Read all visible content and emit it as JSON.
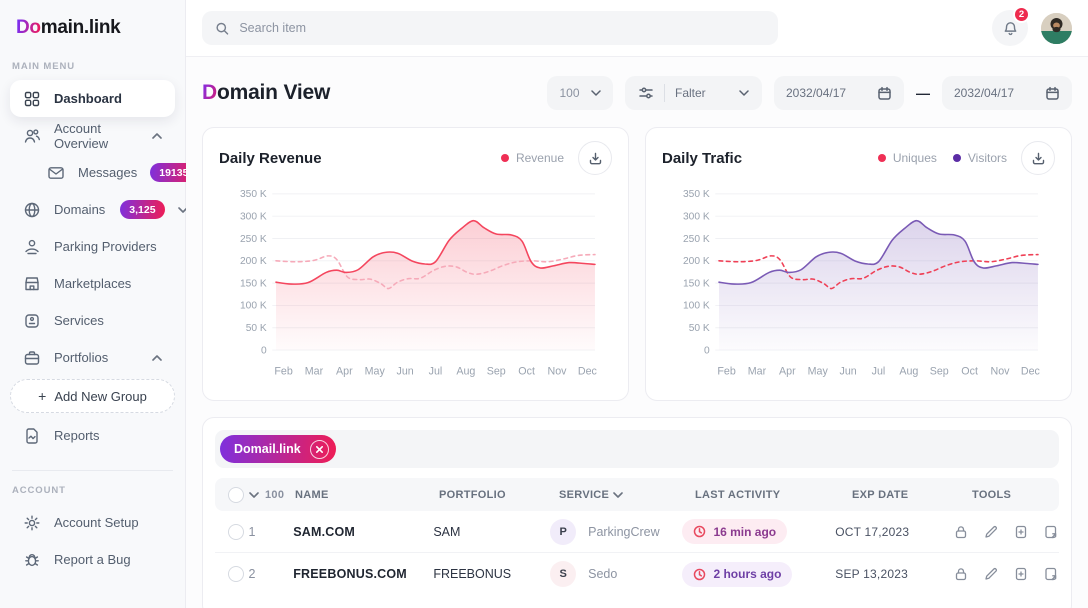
{
  "brand": {
    "logo_gradient": "Do",
    "logo_rest": "main.link"
  },
  "topbar": {
    "search_placeholder": "Search item",
    "notification_count": "2"
  },
  "sidebar": {
    "main_menu_label": "MAIN MENU",
    "account_label": "ACCOUNT",
    "dashboard": "Dashboard",
    "account_overview": "Account Overview",
    "messages": "Messages",
    "messages_badge": "19135",
    "domains": "Domains",
    "domains_badge": "3,125",
    "parking_providers": "Parking Providers",
    "marketplaces": "Marketplaces",
    "services": "Services",
    "portfolios": "Portfolios",
    "add_new_group": "Add New Group",
    "reports": "Reports",
    "account_setup": "Account Setup",
    "report_a_bug": "Report a Bug"
  },
  "page": {
    "title_initial": "D",
    "title_rest": "omain View"
  },
  "controls": {
    "page_size": "100",
    "filter_label": "Falter",
    "date_from": "2032/04/17",
    "date_separator": "—",
    "date_to": "2032/04/17"
  },
  "chart_data": [
    {
      "type": "area",
      "title": "Daily Revenue",
      "categories": [
        "Feb",
        "Mar",
        "Apr",
        "May",
        "Jun",
        "Jul",
        "Aug",
        "Sep",
        "Oct",
        "Nov",
        "Dec"
      ],
      "xlabel": "",
      "ylabel": "",
      "ylim": [
        0,
        350
      ],
      "grid": true,
      "legend_position": "top-right",
      "yticks": [
        {
          "v": 350,
          "label": "350 K"
        },
        {
          "v": 300,
          "label": "300 K"
        },
        {
          "v": 250,
          "label": "250 K"
        },
        {
          "v": 200,
          "label": "200 K"
        },
        {
          "v": 150,
          "label": "150 K"
        },
        {
          "v": 100,
          "label": "100 K"
        },
        {
          "v": 50,
          "label": "50 K"
        },
        {
          "v": 0,
          "label": "0"
        }
      ],
      "legend": [
        {
          "label": "Revenue",
          "color": "#ef2f55"
        }
      ],
      "series": [
        {
          "name": "Trend",
          "style": "dashed",
          "color": "#f6aab9",
          "fill": false,
          "unit": "K",
          "points": [
            [
              -0.25,
              200
            ],
            [
              0.4,
              198
            ],
            [
              1.0,
              201
            ],
            [
              1.45,
              211
            ],
            [
              1.75,
              203
            ],
            [
              2.1,
              164
            ],
            [
              2.5,
              158
            ],
            [
              2.85,
              159
            ],
            [
              3.2,
              149
            ],
            [
              3.45,
              138
            ],
            [
              3.75,
              152
            ],
            [
              4.1,
              160
            ],
            [
              4.5,
              161
            ],
            [
              4.95,
              179
            ],
            [
              5.35,
              188
            ],
            [
              5.7,
              186
            ],
            [
              6.05,
              174
            ],
            [
              6.35,
              170
            ],
            [
              6.75,
              176
            ],
            [
              7.25,
              190
            ],
            [
              7.7,
              198
            ],
            [
              8.2,
              200
            ],
            [
              8.7,
              198
            ],
            [
              9.2,
              204
            ],
            [
              9.7,
              212
            ],
            [
              10.25,
              214
            ]
          ]
        },
        {
          "name": "Revenue",
          "style": "solid",
          "color": "#f4465e",
          "fill": true,
          "unit": "K",
          "points": [
            [
              -0.25,
              152
            ],
            [
              0.25,
              148
            ],
            [
              0.8,
              151
            ],
            [
              1.4,
              174
            ],
            [
              1.75,
              179
            ],
            [
              2.05,
              174
            ],
            [
              2.45,
              180
            ],
            [
              2.95,
              209
            ],
            [
              3.35,
              219
            ],
            [
              3.75,
              217
            ],
            [
              4.25,
              199
            ],
            [
              4.65,
              193
            ],
            [
              5.0,
              198
            ],
            [
              5.45,
              246
            ],
            [
              5.85,
              272
            ],
            [
              6.25,
              290
            ],
            [
              6.6,
              274
            ],
            [
              7.0,
              260
            ],
            [
              7.5,
              258
            ],
            [
              7.85,
              244
            ],
            [
              8.15,
              198
            ],
            [
              8.45,
              184
            ],
            [
              8.9,
              189
            ],
            [
              9.4,
              196
            ],
            [
              9.9,
              194
            ],
            [
              10.25,
              192
            ]
          ]
        }
      ]
    },
    {
      "type": "area",
      "title": "Daily Trafic",
      "categories": [
        "Feb",
        "Mar",
        "Apr",
        "May",
        "Jun",
        "Jul",
        "Aug",
        "Sep",
        "Oct",
        "Nov",
        "Dec"
      ],
      "xlabel": "",
      "ylabel": "",
      "ylim": [
        0,
        350
      ],
      "grid": true,
      "legend_position": "top-right",
      "yticks": [
        {
          "v": 350,
          "label": "350 K"
        },
        {
          "v": 300,
          "label": "300 K"
        },
        {
          "v": 250,
          "label": "250 K"
        },
        {
          "v": 200,
          "label": "200 K"
        },
        {
          "v": 150,
          "label": "150 K"
        },
        {
          "v": 100,
          "label": "100 K"
        },
        {
          "v": 50,
          "label": "50 K"
        },
        {
          "v": 0,
          "label": "0"
        }
      ],
      "legend": [
        {
          "label": "Uniques",
          "color": "#ef2f55"
        },
        {
          "label": "Visitors",
          "color": "#5b2da5"
        }
      ],
      "series": [
        {
          "name": "Uniques",
          "style": "dashed",
          "color": "#ef4056",
          "fill": false,
          "unit": "K",
          "points": [
            [
              -0.25,
              200
            ],
            [
              0.4,
              198
            ],
            [
              1.0,
              201
            ],
            [
              1.45,
              211
            ],
            [
              1.75,
              203
            ],
            [
              2.1,
              164
            ],
            [
              2.5,
              158
            ],
            [
              2.85,
              159
            ],
            [
              3.2,
              149
            ],
            [
              3.45,
              138
            ],
            [
              3.75,
              152
            ],
            [
              4.1,
              160
            ],
            [
              4.5,
              161
            ],
            [
              4.95,
              179
            ],
            [
              5.35,
              188
            ],
            [
              5.7,
              186
            ],
            [
              6.05,
              174
            ],
            [
              6.35,
              170
            ],
            [
              6.75,
              176
            ],
            [
              7.25,
              190
            ],
            [
              7.7,
              198
            ],
            [
              8.2,
              200
            ],
            [
              8.7,
              198
            ],
            [
              9.2,
              204
            ],
            [
              9.7,
              212
            ],
            [
              10.25,
              214
            ]
          ]
        },
        {
          "name": "Visitors",
          "style": "solid",
          "color": "#7a5ab5",
          "fill": true,
          "unit": "K",
          "points": [
            [
              -0.25,
              152
            ],
            [
              0.25,
              148
            ],
            [
              0.8,
              151
            ],
            [
              1.4,
              174
            ],
            [
              1.75,
              179
            ],
            [
              2.05,
              174
            ],
            [
              2.45,
              180
            ],
            [
              2.95,
              209
            ],
            [
              3.35,
              219
            ],
            [
              3.75,
              217
            ],
            [
              4.25,
              199
            ],
            [
              4.65,
              193
            ],
            [
              5.0,
              198
            ],
            [
              5.45,
              246
            ],
            [
              5.85,
              272
            ],
            [
              6.25,
              290
            ],
            [
              6.6,
              274
            ],
            [
              7.0,
              260
            ],
            [
              7.5,
              258
            ],
            [
              7.85,
              244
            ],
            [
              8.15,
              198
            ],
            [
              8.45,
              184
            ],
            [
              8.9,
              189
            ],
            [
              9.4,
              196
            ],
            [
              9.9,
              194
            ],
            [
              10.25,
              192
            ]
          ]
        }
      ]
    }
  ],
  "table": {
    "chip_label": "Domail.link",
    "page_size": "100",
    "columns": {
      "name": "NAME",
      "portfolio": "PORTFOLIO",
      "service": "SERVICE",
      "last_activity": "LAST ACTIVITY",
      "exp_date": "EXP DATE",
      "tools": "TOOLS"
    },
    "rows": [
      {
        "num": "1",
        "name": "SAM.COM",
        "portfolio": "SAM",
        "service_initial": "P",
        "service": "ParkingCrew",
        "service_color": "#f1ecfa",
        "activity": "16 min ago",
        "activity_bg": "#fdecf2",
        "activity_color": "#8b3a8f",
        "exp": "OCT 17,2023"
      },
      {
        "num": "2",
        "name": "FREEBONUS.COM",
        "portfolio": "FREEBONUS",
        "service_initial": "S",
        "service": "Sedo",
        "service_color": "#fbeff1",
        "activity": "2 hours ago",
        "activity_bg": "#f5eefb",
        "activity_color": "#6e3fa5",
        "exp": "SEP 13,2023"
      }
    ]
  }
}
